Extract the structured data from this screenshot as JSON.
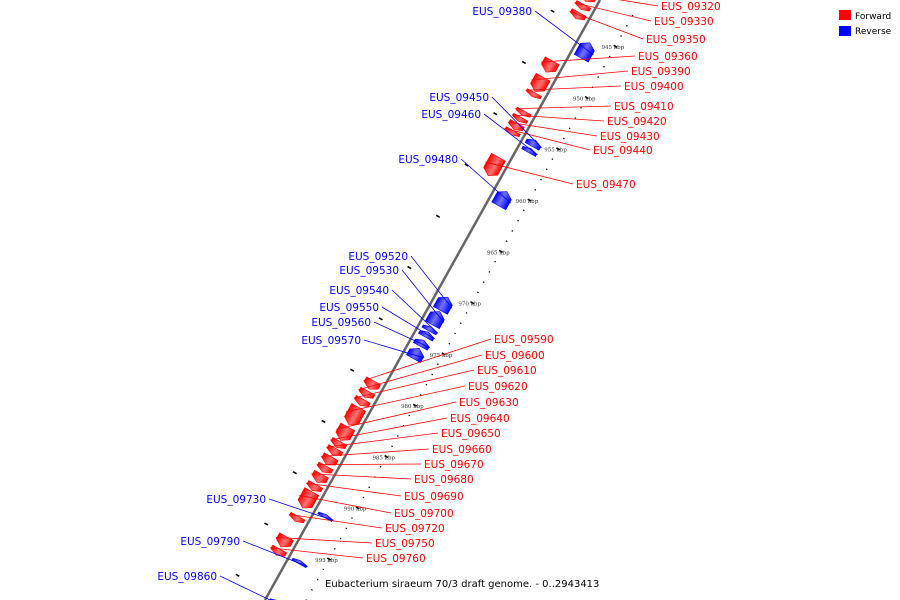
{
  "legend": {
    "forward_label": "Forward",
    "reverse_label": "Reverse",
    "forward_color": "#ff0000",
    "reverse_color": "#0000ff"
  },
  "caption": "Eubacterium siraeum 70/3 draft genome. - 0..2943413",
  "ticks": [
    {
      "kbp": 945,
      "label": "945 kbp"
    },
    {
      "kbp": 950,
      "label": "950 kbp"
    },
    {
      "kbp": 955,
      "label": "955 kbp"
    },
    {
      "kbp": 960,
      "label": "960 kbp"
    },
    {
      "kbp": 965,
      "label": "965 kbp"
    },
    {
      "kbp": 970,
      "label": "970 kbp"
    },
    {
      "kbp": 975,
      "label": "975 kbp"
    },
    {
      "kbp": 980,
      "label": "980 kbp"
    },
    {
      "kbp": 985,
      "label": "985 kbp"
    },
    {
      "kbp": 990,
      "label": "990 kbp"
    },
    {
      "kbp": 995,
      "label": "995 kbp"
    }
  ],
  "genes": [
    {
      "label": "EUS_09320",
      "strand": "forward",
      "kbp_start": 942.2,
      "kbp_end": 942.9
    },
    {
      "label": "EUS_09330",
      "strand": "forward",
      "kbp_start": 943.2,
      "kbp_end": 943.7
    },
    {
      "label": "EUS_09350",
      "strand": "forward",
      "kbp_start": 944.0,
      "kbp_end": 944.6
    },
    {
      "label": "EUS_09360",
      "strand": "forward",
      "kbp_start": 948.7,
      "kbp_end": 949.8
    },
    {
      "label": "EUS_09380",
      "strand": "reverse",
      "kbp_start": 945.8,
      "kbp_end": 947.3
    },
    {
      "label": "EUS_09390",
      "strand": "forward",
      "kbp_start": 950.3,
      "kbp_end": 951.7
    },
    {
      "label": "EUS_09400",
      "strand": "forward",
      "kbp_start": 951.8,
      "kbp_end": 952.2
    },
    {
      "label": "EUS_09410",
      "strand": "forward",
      "kbp_start": 953.6,
      "kbp_end": 954.0
    },
    {
      "label": "EUS_09420",
      "strand": "forward",
      "kbp_start": 954.2,
      "kbp_end": 954.6
    },
    {
      "label": "EUS_09430",
      "strand": "forward",
      "kbp_start": 954.8,
      "kbp_end": 955.4
    },
    {
      "label": "EUS_09440",
      "strand": "forward",
      "kbp_start": 955.5,
      "kbp_end": 955.9
    },
    {
      "label": "EUS_09450",
      "strand": "reverse",
      "kbp_start": 955.3,
      "kbp_end": 955.9
    },
    {
      "label": "EUS_09460",
      "strand": "reverse",
      "kbp_start": 956.1,
      "kbp_end": 956.5
    },
    {
      "label": "EUS_09470",
      "strand": "forward",
      "kbp_start": 958.1,
      "kbp_end": 959.9
    },
    {
      "label": "EUS_09480",
      "strand": "reverse",
      "kbp_start": 960.3,
      "kbp_end": 961.7
    },
    {
      "label": "EUS_09520",
      "strand": "reverse",
      "kbp_start": 970.6,
      "kbp_end": 971.9
    },
    {
      "label": "EUS_09530",
      "strand": "reverse",
      "kbp_start": 972.0,
      "kbp_end": 973.3
    },
    {
      "label": "EUS_09540",
      "strand": "reverse",
      "kbp_start": 973.5,
      "kbp_end": 973.9
    },
    {
      "label": "EUS_09550",
      "strand": "reverse",
      "kbp_start": 974.0,
      "kbp_end": 974.5
    },
    {
      "label": "EUS_09560",
      "strand": "reverse",
      "kbp_start": 974.8,
      "kbp_end": 975.4
    },
    {
      "label": "EUS_09570",
      "strand": "reverse",
      "kbp_start": 975.6,
      "kbp_end": 976.6
    },
    {
      "label": "EUS_09590",
      "strand": "forward",
      "kbp_start": 979.9,
      "kbp_end": 980.7
    },
    {
      "label": "EUS_09600",
      "strand": "forward",
      "kbp_start": 980.9,
      "kbp_end": 981.5
    },
    {
      "label": "EUS_09610",
      "strand": "forward",
      "kbp_start": 981.7,
      "kbp_end": 982.3
    },
    {
      "label": "EUS_09620",
      "strand": "forward",
      "kbp_start": 982.5,
      "kbp_end": 984.2
    },
    {
      "label": "EUS_09630",
      "strand": "forward",
      "kbp_start": 984.4,
      "kbp_end": 985.7
    },
    {
      "label": "EUS_09640",
      "strand": "forward",
      "kbp_start": 985.8,
      "kbp_end": 986.4
    },
    {
      "label": "EUS_09650",
      "strand": "forward",
      "kbp_start": 986.5,
      "kbp_end": 987.1
    },
    {
      "label": "EUS_09660",
      "strand": "forward",
      "kbp_start": 987.3,
      "kbp_end": 988.1
    },
    {
      "label": "EUS_09670",
      "strand": "forward",
      "kbp_start": 988.2,
      "kbp_end": 988.8
    },
    {
      "label": "EUS_09680",
      "strand": "forward",
      "kbp_start": 989.0,
      "kbp_end": 989.8
    },
    {
      "label": "EUS_09690",
      "strand": "forward",
      "kbp_start": 990.0,
      "kbp_end": 990.6
    },
    {
      "label": "EUS_09700",
      "strand": "forward",
      "kbp_start": 990.7,
      "kbp_end": 992.3
    },
    {
      "label": "EUS_09720",
      "strand": "forward",
      "kbp_start": 993.1,
      "kbp_end": 993.6
    },
    {
      "label": "EUS_09730",
      "strand": "reverse",
      "kbp_start": 991.8,
      "kbp_end": 992.1
    },
    {
      "label": "EUS_09750",
      "strand": "forward",
      "kbp_start": 995.1,
      "kbp_end": 996.1
    },
    {
      "label": "EUS_09760",
      "strand": "forward",
      "kbp_start": 996.3,
      "kbp_end": 996.9
    },
    {
      "label": "EUS_09790",
      "strand": "reverse",
      "kbp_start": 996.3,
      "kbp_end": 996.6
    },
    {
      "label": "EUS_09860",
      "strand": "reverse",
      "kbp_start": 1000.2,
      "kbp_end": 1000.6
    }
  ]
}
